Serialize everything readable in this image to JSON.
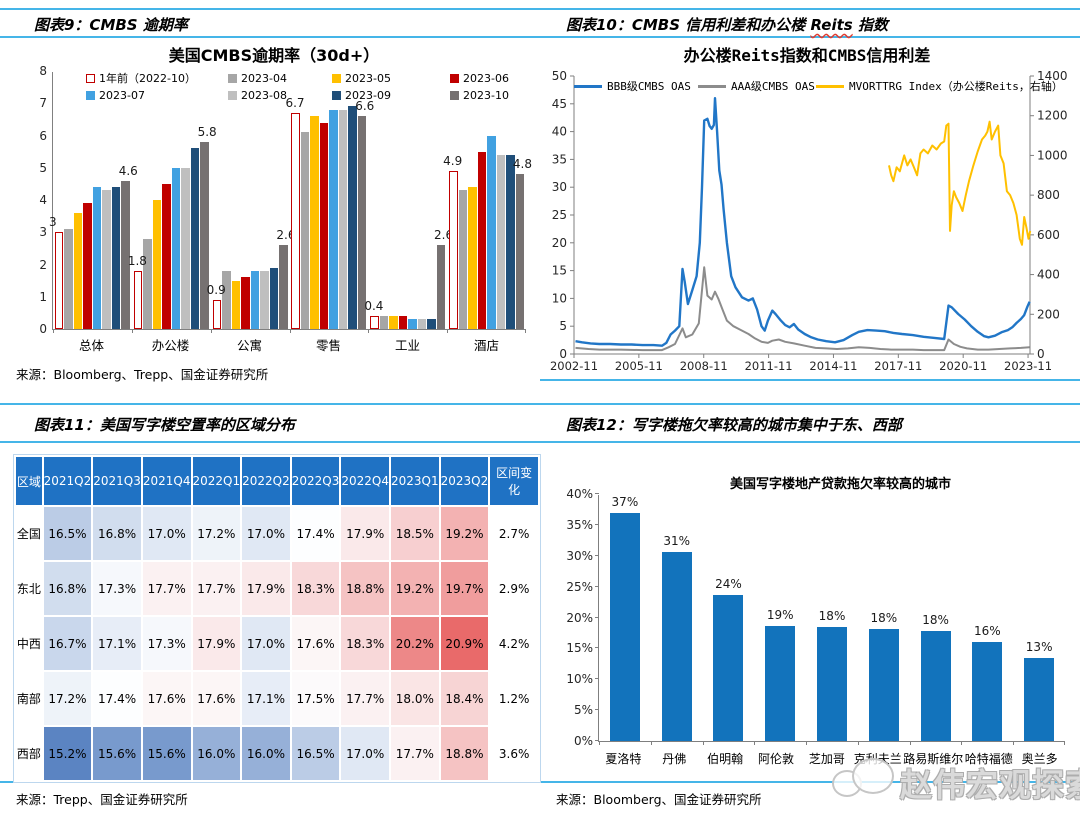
{
  "page": {
    "fig9_label": "图表9：CMBS 逾期率",
    "fig10_parts": {
      "pre": "图表10：CMBS 信用利差和办公楼 ",
      "reits": "Reits",
      "post": " 指数"
    },
    "fig11_label": "图表11：美国写字楼空置率的区域分布",
    "fig12_label": "图表12：写字楼拖欠率较高的城市集中于东、西部",
    "source9": "来源：Bloomberg、Trepp、国金证券研究所",
    "source11": "来源：Trepp、国金证券研究所",
    "source12": "来源：Bloomberg、国金证券研究所",
    "watermark": "赵伟宏观探索"
  },
  "chart_data": [
    {
      "id": "cmbs_delinquency",
      "type": "bar",
      "title": "美国CMBS逾期率（30d+）",
      "ylim": [
        0,
        8
      ],
      "yticks": [
        0,
        1,
        2,
        3,
        4,
        5,
        6,
        7,
        8
      ],
      "categories": [
        "总体",
        "办公楼",
        "公寓",
        "零售",
        "工业",
        "酒店"
      ],
      "series": [
        {
          "name": "1年前（2022-10）",
          "style": "outline",
          "color": "#C00000",
          "values": [
            3.0,
            1.8,
            0.9,
            6.7,
            0.4,
            4.9
          ]
        },
        {
          "name": "2023-04",
          "color": "#A6A6A6",
          "values": [
            3.1,
            2.8,
            1.8,
            6.1,
            0.4,
            4.3
          ]
        },
        {
          "name": "2023-05",
          "color": "#FFC000",
          "values": [
            3.6,
            4.0,
            1.5,
            6.6,
            0.4,
            4.4
          ]
        },
        {
          "name": "2023-06",
          "color": "#C00000",
          "values": [
            3.9,
            4.5,
            1.6,
            6.4,
            0.4,
            5.5
          ]
        },
        {
          "name": "2023-07",
          "color": "#41A1E1",
          "values": [
            4.4,
            5.0,
            1.8,
            6.8,
            0.3,
            6.0
          ]
        },
        {
          "name": "2023-08",
          "color": "#BFBFBF",
          "values": [
            4.3,
            5.0,
            1.8,
            6.8,
            0.3,
            5.4
          ]
        },
        {
          "name": "2023-09",
          "color": "#1F4E79",
          "values": [
            4.4,
            5.6,
            1.9,
            6.9,
            0.3,
            5.4
          ]
        },
        {
          "name": "2023-10",
          "color": "#767171",
          "values": [
            4.6,
            5.8,
            2.6,
            6.6,
            2.6,
            4.8
          ]
        }
      ],
      "first_last_labels": [
        [
          "3",
          "4.6"
        ],
        [
          "1.8",
          "5.8"
        ],
        [
          "0.9",
          "2.6"
        ],
        [
          "6.7",
          "6.6"
        ],
        [
          "0.4",
          "2.6"
        ],
        [
          "4.9",
          "4.8"
        ]
      ]
    },
    {
      "id": "reits_oas",
      "type": "line",
      "title": "办公楼Reits指数和CMBS信用利差",
      "left_ylim": [
        0,
        50
      ],
      "left_ytick_step": 5,
      "right_ylim": [
        0,
        1400
      ],
      "right_ytick_step": 200,
      "x_range": [
        2002.83,
        2023.92
      ],
      "x_ticks": [
        "2002-11",
        "2005-11",
        "2008-11",
        "2011-11",
        "2014-11",
        "2017-11",
        "2020-11",
        "2023-11"
      ],
      "x_tick_pos": [
        2002.83,
        2005.83,
        2008.83,
        2011.83,
        2014.83,
        2017.83,
        2020.83,
        2023.83
      ],
      "series": [
        {
          "name": "AAA级CMBS OAS",
          "color": "#8C8C8C",
          "axis": "left",
          "width": 2,
          "points": [
            [
              2002.9,
              1.1
            ],
            [
              2003.5,
              0.9
            ],
            [
              2004,
              0.8
            ],
            [
              2005,
              0.8
            ],
            [
              2006,
              0.7
            ],
            [
              2006.9,
              0.7
            ],
            [
              2007.2,
              1.2
            ],
            [
              2007.5,
              1.8
            ],
            [
              2007.85,
              4.6
            ],
            [
              2008.0,
              3.0
            ],
            [
              2008.3,
              3.5
            ],
            [
              2008.6,
              5.5
            ],
            [
              2008.85,
              15.6
            ],
            [
              2009.0,
              10.5
            ],
            [
              2009.2,
              9.8
            ],
            [
              2009.35,
              11.2
            ],
            [
              2009.5,
              10.0
            ],
            [
              2009.7,
              8.0
            ],
            [
              2009.9,
              6.0
            ],
            [
              2010.2,
              5.0
            ],
            [
              2010.5,
              4.4
            ],
            [
              2010.9,
              3.6
            ],
            [
              2011.2,
              2.8
            ],
            [
              2011.5,
              2.2
            ],
            [
              2011.8,
              2.0
            ],
            [
              2012.0,
              2.4
            ],
            [
              2012.3,
              2.6
            ],
            [
              2012.6,
              2.2
            ],
            [
              2013.0,
              1.9
            ],
            [
              2013.5,
              1.5
            ],
            [
              2014.0,
              1.1
            ],
            [
              2014.5,
              1.0
            ],
            [
              2015.0,
              0.9
            ],
            [
              2015.5,
              1.0
            ],
            [
              2016.0,
              1.2
            ],
            [
              2016.5,
              1.1
            ],
            [
              2017.0,
              0.9
            ],
            [
              2017.5,
              0.8
            ],
            [
              2018.0,
              0.8
            ],
            [
              2018.5,
              0.8
            ],
            [
              2019.0,
              0.7
            ],
            [
              2019.5,
              0.7
            ],
            [
              2019.95,
              0.7
            ],
            [
              2020.15,
              2.6
            ],
            [
              2020.4,
              1.8
            ],
            [
              2020.7,
              1.3
            ],
            [
              2021.0,
              1.0
            ],
            [
              2021.5,
              0.8
            ],
            [
              2022.0,
              0.8
            ],
            [
              2022.5,
              0.9
            ],
            [
              2023.0,
              1.0
            ],
            [
              2023.5,
              1.1
            ],
            [
              2023.9,
              1.2
            ]
          ]
        },
        {
          "name": "BBB级CMBS OAS",
          "color": "#2176C7",
          "axis": "left",
          "width": 2.4,
          "points": [
            [
              2002.9,
              2.3
            ],
            [
              2003.2,
              2.1
            ],
            [
              2003.6,
              1.9
            ],
            [
              2004.0,
              1.8
            ],
            [
              2004.5,
              1.8
            ],
            [
              2005.0,
              1.7
            ],
            [
              2005.5,
              1.7
            ],
            [
              2006.0,
              1.6
            ],
            [
              2006.5,
              1.6
            ],
            [
              2006.9,
              1.5
            ],
            [
              2007.1,
              2.0
            ],
            [
              2007.3,
              3.5
            ],
            [
              2007.5,
              4.2
            ],
            [
              2007.7,
              5.0
            ],
            [
              2007.85,
              15.3
            ],
            [
              2007.95,
              13.0
            ],
            [
              2008.1,
              9.0
            ],
            [
              2008.3,
              11.5
            ],
            [
              2008.5,
              14.0
            ],
            [
              2008.65,
              20.0
            ],
            [
              2008.75,
              30.0
            ],
            [
              2008.85,
              42.0
            ],
            [
              2009.0,
              42.3
            ],
            [
              2009.1,
              41.0
            ],
            [
              2009.2,
              40.5
            ],
            [
              2009.3,
              41.2
            ],
            [
              2009.35,
              46.0
            ],
            [
              2009.45,
              40.0
            ],
            [
              2009.55,
              33.0
            ],
            [
              2009.65,
              30.5
            ],
            [
              2009.75,
              26.0
            ],
            [
              2009.9,
              20.0
            ],
            [
              2010.1,
              14.0
            ],
            [
              2010.3,
              12.0
            ],
            [
              2010.6,
              10.2
            ],
            [
              2010.9,
              9.6
            ],
            [
              2011.1,
              10.0
            ],
            [
              2011.3,
              8.0
            ],
            [
              2011.5,
              5.0
            ],
            [
              2011.65,
              4.2
            ],
            [
              2011.8,
              6.0
            ],
            [
              2012.0,
              7.8
            ],
            [
              2012.15,
              7.2
            ],
            [
              2012.4,
              6.0
            ],
            [
              2012.6,
              5.2
            ],
            [
              2012.8,
              4.8
            ],
            [
              2013.0,
              5.4
            ],
            [
              2013.2,
              4.4
            ],
            [
              2013.5,
              3.6
            ],
            [
              2013.8,
              3.0
            ],
            [
              2014.1,
              2.6
            ],
            [
              2014.5,
              2.3
            ],
            [
              2014.9,
              2.1
            ],
            [
              2015.3,
              2.5
            ],
            [
              2015.7,
              3.4
            ],
            [
              2016.0,
              4.0
            ],
            [
              2016.4,
              4.3
            ],
            [
              2016.8,
              4.2
            ],
            [
              2017.2,
              4.1
            ],
            [
              2017.6,
              3.8
            ],
            [
              2018.0,
              3.6
            ],
            [
              2018.5,
              3.4
            ],
            [
              2019.0,
              3.1
            ],
            [
              2019.5,
              2.9
            ],
            [
              2019.95,
              2.7
            ],
            [
              2020.15,
              8.7
            ],
            [
              2020.3,
              8.4
            ],
            [
              2020.6,
              7.2
            ],
            [
              2020.9,
              6.2
            ],
            [
              2021.2,
              5.0
            ],
            [
              2021.5,
              4.0
            ],
            [
              2021.8,
              3.2
            ],
            [
              2022.0,
              3.0
            ],
            [
              2022.3,
              3.3
            ],
            [
              2022.6,
              3.9
            ],
            [
              2022.9,
              4.3
            ],
            [
              2023.1,
              4.8
            ],
            [
              2023.3,
              5.6
            ],
            [
              2023.5,
              6.3
            ],
            [
              2023.65,
              7.0
            ],
            [
              2023.8,
              8.5
            ],
            [
              2023.9,
              9.4
            ]
          ]
        },
        {
          "name": "MVORTTRG Index（办公楼Reits，右轴）",
          "color": "#FFC000",
          "axis": "right",
          "width": 2,
          "points": [
            [
              2017.4,
              950
            ],
            [
              2017.5,
              900
            ],
            [
              2017.6,
              870
            ],
            [
              2017.75,
              940
            ],
            [
              2017.9,
              920
            ],
            [
              2018.0,
              960
            ],
            [
              2018.1,
              1000
            ],
            [
              2018.25,
              950
            ],
            [
              2018.4,
              980
            ],
            [
              2018.55,
              940
            ],
            [
              2018.7,
              900
            ],
            [
              2018.85,
              1010
            ],
            [
              2019.0,
              1030
            ],
            [
              2019.2,
              1010
            ],
            [
              2019.4,
              1050
            ],
            [
              2019.6,
              1030
            ],
            [
              2019.8,
              1060
            ],
            [
              2019.95,
              1070
            ],
            [
              2020.05,
              1150
            ],
            [
              2020.15,
              1160
            ],
            [
              2020.22,
              620
            ],
            [
              2020.3,
              750
            ],
            [
              2020.4,
              820
            ],
            [
              2020.5,
              790
            ],
            [
              2020.65,
              760
            ],
            [
              2020.8,
              720
            ],
            [
              2020.95,
              800
            ],
            [
              2021.1,
              870
            ],
            [
              2021.3,
              950
            ],
            [
              2021.5,
              1020
            ],
            [
              2021.7,
              1080
            ],
            [
              2021.85,
              1100
            ],
            [
              2021.95,
              1120
            ],
            [
              2022.05,
              1170
            ],
            [
              2022.15,
              1080
            ],
            [
              2022.3,
              1120
            ],
            [
              2022.45,
              1150
            ],
            [
              2022.55,
              1000
            ],
            [
              2022.7,
              960
            ],
            [
              2022.85,
              820
            ],
            [
              2023.0,
              800
            ],
            [
              2023.15,
              760
            ],
            [
              2023.3,
              700
            ],
            [
              2023.45,
              580
            ],
            [
              2023.55,
              550
            ],
            [
              2023.65,
              690
            ],
            [
              2023.75,
              640
            ],
            [
              2023.85,
              580
            ],
            [
              2023.93,
              620
            ]
          ]
        }
      ]
    },
    {
      "id": "vacancy_table",
      "type": "table",
      "columns": [
        "区域",
        "2021Q2",
        "2021Q3",
        "2021Q4",
        "2022Q1",
        "2022Q2",
        "2022Q3",
        "2022Q4",
        "2023Q1",
        "2023Q2",
        "区间变化"
      ],
      "rows": [
        {
          "label": "全国",
          "values": [
            16.5,
            16.8,
            17.0,
            17.2,
            17.0,
            17.4,
            17.9,
            18.5,
            19.2
          ],
          "change": "2.7%"
        },
        {
          "label": "东北",
          "values": [
            16.8,
            17.3,
            17.7,
            17.7,
            17.9,
            18.3,
            18.8,
            19.2,
            19.7
          ],
          "change": "2.9%"
        },
        {
          "label": "中西",
          "values": [
            16.7,
            17.1,
            17.3,
            17.9,
            17.0,
            17.6,
            18.3,
            20.2,
            20.9
          ],
          "change": "4.2%"
        },
        {
          "label": "南部",
          "values": [
            17.2,
            17.4,
            17.6,
            17.6,
            17.1,
            17.5,
            17.7,
            18.0,
            18.4
          ],
          "change": "1.2%"
        },
        {
          "label": "西部",
          "values": [
            15.2,
            15.6,
            15.6,
            16.0,
            16.0,
            16.5,
            17.0,
            17.7,
            18.8
          ],
          "change": "3.6%"
        }
      ],
      "colorscale": {
        "min": 15.2,
        "mid": 17.4,
        "max": 20.9,
        "min_color": "#5B84C2",
        "mid_color": "#FDFEFF",
        "max_color": "#E96A6A"
      },
      "header_bg": "#1F72C4",
      "header_color": "#FFFFFF"
    },
    {
      "id": "city_delinquency",
      "type": "bar",
      "title": "美国写字楼地产贷款拖欠率较高的城市",
      "ylim": [
        0,
        40
      ],
      "ytick_step": 5,
      "categories": [
        "夏洛特",
        "丹佛",
        "伯明翰",
        "阿伦敦",
        "芝加哥",
        "克利夫兰",
        "路易斯维尔",
        "哈特福德",
        "奥兰多"
      ],
      "values": [
        37,
        30.6,
        23.6,
        18.6,
        18.4,
        18.2,
        17.8,
        16.1,
        13.4
      ],
      "labels": [
        "37%",
        "31%",
        "24%",
        "19%",
        "18%",
        "18%",
        "18%",
        "16%",
        "13%"
      ],
      "bar_color": "#1273BC"
    }
  ]
}
